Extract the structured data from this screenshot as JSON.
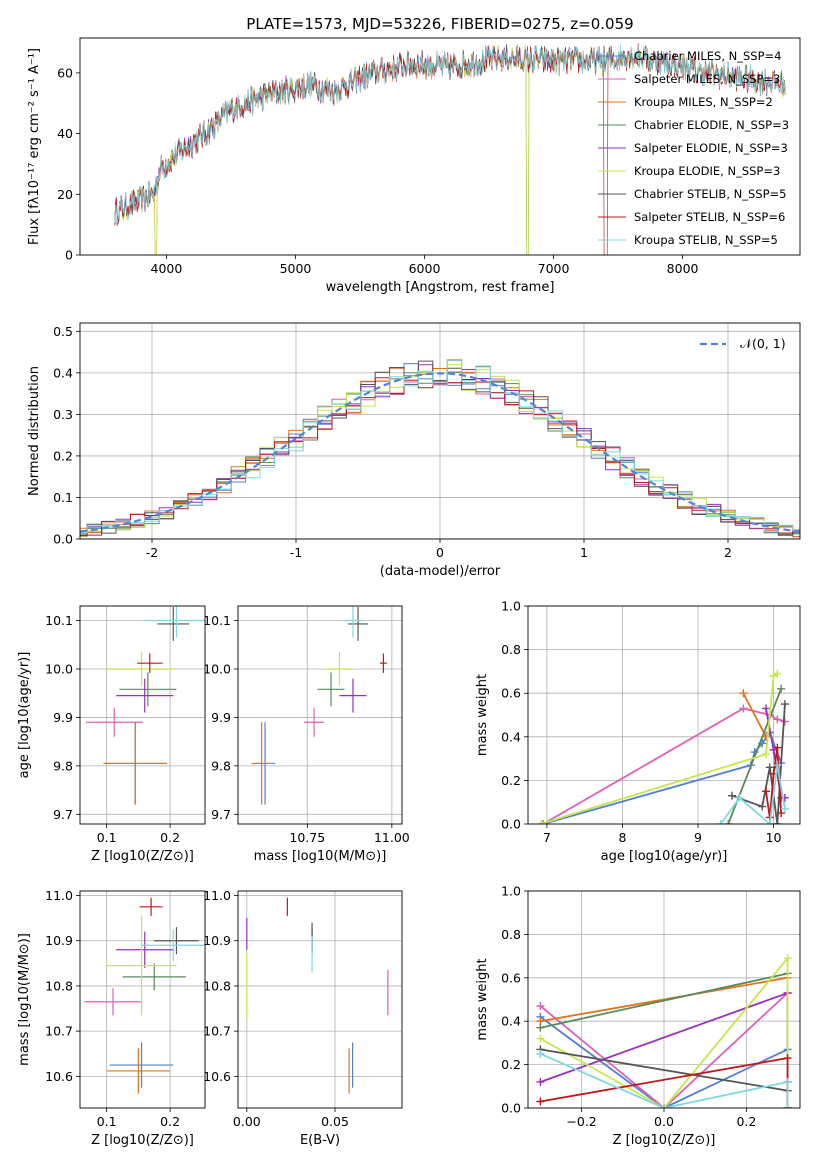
{
  "title": "PLATE=1573, MJD=53226, FIBERID=0275, z=0.059",
  "colors": [
    "#4f7fd9",
    "#e05fb7",
    "#e2731c",
    "#5a8a5a",
    "#9a2fbf",
    "#c4e84a",
    "#555555",
    "#c01818",
    "#7fd8e0"
  ],
  "chart_data": [
    {
      "id": "spectrum",
      "type": "line",
      "xlabel": "wavelength [Angstrom, rest frame]",
      "ylabel": "Flux [fλ10⁻¹⁷ erg cm⁻² s⁻¹ A⁻¹]",
      "xlim": [
        3330,
        8910
      ],
      "ylim": [
        0,
        71.5
      ],
      "xticks": [
        4000,
        5000,
        6000,
        7000,
        8000
      ],
      "yticks": [
        0,
        20,
        40,
        60
      ],
      "grid": false,
      "legend_position": "right",
      "series": [
        {
          "name": "Chabrier MILES, N_SSP=4"
        },
        {
          "name": "Salpeter MILES, N_SSP=3"
        },
        {
          "name": "Kroupa MILES, N_SSP=2"
        },
        {
          "name": "Chabrier ELODIE, N_SSP=3"
        },
        {
          "name": "Salpeter ELODIE, N_SSP=3"
        },
        {
          "name": "Kroupa ELODIE, N_SSP=3"
        },
        {
          "name": "Chabrier STELIB, N_SSP=5"
        },
        {
          "name": "Salpeter STELIB, N_SSP=6"
        },
        {
          "name": "Kroupa STELIB, N_SSP=5"
        }
      ],
      "continuum": {
        "x": [
          3600,
          3900,
          3950,
          4100,
          4300,
          4500,
          4800,
          5100,
          5300,
          5600,
          5900,
          6200,
          6600,
          7000,
          7400,
          7600,
          7800,
          8000,
          8200,
          8500,
          8800
        ],
        "y": [
          14,
          20,
          28,
          34,
          40,
          48,
          53,
          56,
          54,
          60,
          63,
          62,
          65,
          64,
          64,
          66,
          64,
          62,
          60,
          58,
          56
        ]
      }
    },
    {
      "id": "residuals",
      "type": "line",
      "xlabel": "(data-model)/error",
      "ylabel": "Normed distribution",
      "xlim": [
        -2.5,
        2.5
      ],
      "ylim": [
        0,
        0.52
      ],
      "xticks": [
        -2,
        -1,
        0,
        1,
        2
      ],
      "yticks": [
        0.0,
        0.1,
        0.2,
        0.3,
        0.4,
        0.5
      ],
      "grid": true,
      "legend": "𝒩(0, 1)",
      "reference": {
        "name": "𝒩(0, 1)",
        "mean": 0,
        "sigma": 1
      }
    },
    {
      "id": "age-vs-Z",
      "type": "scatter",
      "xlabel": "Z [log10(Z/Z⊙)]",
      "ylabel": "age  [log10(age/yr)]",
      "xlim": [
        0.058,
        0.255
      ],
      "ylim": [
        9.68,
        10.13
      ],
      "xticks": [
        0.1,
        0.2
      ],
      "yticks": [
        9.7,
        9.8,
        9.9,
        10.0,
        10.1
      ],
      "grid": true,
      "points": [
        {
          "x": 0.145,
          "y": 9.805,
          "xerr": 0.05,
          "yerr": 0.085
        },
        {
          "x": 0.112,
          "y": 9.89,
          "xerr": 0.045,
          "yerr": 0.03
        },
        {
          "x": 0.145,
          "y": 9.805,
          "xerr": 0.05,
          "yerr": 0.085
        },
        {
          "x": 0.165,
          "y": 9.958,
          "xerr": 0.045,
          "yerr": 0.035
        },
        {
          "x": 0.16,
          "y": 9.945,
          "xerr": 0.045,
          "yerr": 0.035
        },
        {
          "x": 0.155,
          "y": 10.0,
          "xerr": 0.055,
          "yerr": 0.035
        },
        {
          "x": 0.205,
          "y": 10.093,
          "xerr": 0.025,
          "yerr": 0.035
        },
        {
          "x": 0.168,
          "y": 10.012,
          "xerr": 0.02,
          "yerr": 0.02
        },
        {
          "x": 0.21,
          "y": 10.1,
          "xerr": 0.05,
          "yerr": 0.035
        }
      ]
    },
    {
      "id": "age-vs-mass",
      "type": "scatter",
      "xlabel": "mass [log10(M/M⊙)]",
      "ylabel": "",
      "xlim": [
        10.545,
        11.03
      ],
      "ylim": [
        9.68,
        10.13
      ],
      "xticks": [
        10.75,
        11.0
      ],
      "yticks": [
        9.7,
        9.8,
        9.9,
        10.0,
        10.1
      ],
      "grid": true,
      "points": [
        {
          "x": 10.625,
          "y": 9.805,
          "xerr": 0.03,
          "yerr": 0.085
        },
        {
          "x": 10.77,
          "y": 9.89,
          "xerr": 0.03,
          "yerr": 0.03
        },
        {
          "x": 10.615,
          "y": 9.805,
          "xerr": 0.03,
          "yerr": 0.085
        },
        {
          "x": 10.82,
          "y": 9.958,
          "xerr": 0.04,
          "yerr": 0.035
        },
        {
          "x": 10.885,
          "y": 9.945,
          "xerr": 0.04,
          "yerr": 0.035
        },
        {
          "x": 10.845,
          "y": 10.0,
          "xerr": 0.04,
          "yerr": 0.035
        },
        {
          "x": 10.9,
          "y": 10.093,
          "xerr": 0.03,
          "yerr": 0.035
        },
        {
          "x": 10.975,
          "y": 10.012,
          "xerr": 0.01,
          "yerr": 0.02
        },
        {
          "x": 10.885,
          "y": 10.1,
          "xerr": 0.03,
          "yerr": 0.035
        }
      ]
    },
    {
      "id": "mass-weight-vs-age",
      "type": "line",
      "xlabel": "age  [log10(age/yr)]",
      "ylabel": "mass weight",
      "xlim": [
        6.75,
        10.35
      ],
      "ylim": [
        0,
        1.0
      ],
      "xticks": [
        7,
        8,
        9,
        10
      ],
      "yticks": [
        0.0,
        0.2,
        0.4,
        0.6,
        0.8,
        1.0
      ],
      "grid": true,
      "series": [
        {
          "x": [
            6.95,
            9.7,
            9.75,
            9.85,
            9.95,
            10.1
          ],
          "y": [
            0.0,
            0.27,
            0.33,
            0.37,
            0.42,
            0.28
          ]
        },
        {
          "x": [
            6.95,
            9.6,
            9.95,
            10.05,
            10.15
          ],
          "y": [
            0.0,
            0.53,
            0.5,
            0.48,
            0.47
          ]
        },
        {
          "x": [
            9.6,
            9.9
          ],
          "y": [
            0.6,
            0.4
          ]
        },
        {
          "x": [
            9.4,
            10.1
          ],
          "y": [
            0.0,
            0.62
          ]
        },
        {
          "x": [
            9.9,
            10.0,
            10.1,
            10.15
          ],
          "y": [
            0.53,
            0.34,
            0.12,
            0.12
          ]
        },
        {
          "x": [
            6.92,
            9.9,
            10.0,
            10.05
          ],
          "y": [
            0.0,
            0.32,
            0.68,
            0.69
          ]
        },
        {
          "x": [
            9.45,
            9.85,
            9.95,
            10.05,
            10.15
          ],
          "y": [
            0.13,
            0.08,
            0.26,
            0.0,
            0.55
          ]
        },
        {
          "x": [
            9.9,
            9.95,
            10.0,
            10.05,
            10.1
          ],
          "y": [
            0.15,
            0.03,
            0.23,
            0.35,
            0.05
          ]
        },
        {
          "x": [
            9.3,
            9.55,
            9.95,
            10.05,
            10.15
          ],
          "y": [
            0.0,
            0.12,
            0.0,
            0.27,
            0.07
          ]
        }
      ]
    },
    {
      "id": "mass-vs-Z",
      "type": "scatter",
      "xlabel": "Z [log10(Z/Z⊙)]",
      "ylabel": "mass [log10(M/M⊙)]",
      "xlim": [
        0.058,
        0.255
      ],
      "ylim": [
        10.53,
        11.01
      ],
      "xticks": [
        0.1,
        0.2
      ],
      "yticks": [
        10.6,
        10.7,
        10.8,
        10.9,
        11.0
      ],
      "grid": true,
      "points": [
        {
          "x": 0.155,
          "y": 10.625,
          "xerr": 0.05,
          "yerr": 0.05
        },
        {
          "x": 0.11,
          "y": 10.765,
          "xerr": 0.045,
          "yerr": 0.03
        },
        {
          "x": 0.15,
          "y": 10.612,
          "xerr": 0.05,
          "yerr": 0.05
        },
        {
          "x": 0.175,
          "y": 10.82,
          "xerr": 0.05,
          "yerr": 0.03
        },
        {
          "x": 0.16,
          "y": 10.88,
          "xerr": 0.045,
          "yerr": 0.04
        },
        {
          "x": 0.155,
          "y": 10.845,
          "xerr": 0.055,
          "yerr": 0.11
        },
        {
          "x": 0.21,
          "y": 10.9,
          "xerr": 0.035,
          "yerr": 0.03
        },
        {
          "x": 0.17,
          "y": 10.975,
          "xerr": 0.018,
          "yerr": 0.02
        },
        {
          "x": 0.205,
          "y": 10.89,
          "xerr": 0.05,
          "yerr": 0.035
        }
      ]
    },
    {
      "id": "mass-vs-EBV",
      "type": "scatter",
      "xlabel": "E(B-V)",
      "ylabel": "",
      "xlim": [
        -0.005,
        0.088
      ],
      "ylim": [
        10.53,
        11.01
      ],
      "xticks": [
        0.0,
        0.05
      ],
      "yticks": [
        10.6,
        10.7,
        10.8,
        10.9,
        11.0
      ],
      "grid": true,
      "points": [
        {
          "x": 0.06,
          "y": 10.625,
          "xerr": 0,
          "yerr": 0.05
        },
        {
          "x": 0.08,
          "y": 10.785,
          "xerr": 0,
          "yerr": 0.05
        },
        {
          "x": 0.058,
          "y": 10.612,
          "xerr": 0,
          "yerr": 0.05
        },
        {
          "x": 0.037,
          "y": 10.9,
          "xerr": 0,
          "yerr": 0.025
        },
        {
          "x": 0.0,
          "y": 10.915,
          "xerr": 0,
          "yerr": 0.035
        },
        {
          "x": 0.0,
          "y": 10.8,
          "xerr": 0,
          "yerr": 0.07
        },
        {
          "x": 0.037,
          "y": 10.905,
          "xerr": 0,
          "yerr": 0.035
        },
        {
          "x": 0.023,
          "y": 10.975,
          "xerr": 0,
          "yerr": 0.02
        },
        {
          "x": 0.037,
          "y": 10.87,
          "xerr": 0,
          "yerr": 0.04
        }
      ]
    },
    {
      "id": "mass-weight-vs-Z",
      "type": "line",
      "xlabel": "Z [log10(Z/Z⊙)]",
      "ylabel": "mass weight",
      "xlim": [
        -0.33,
        0.33
      ],
      "ylim": [
        0,
        1.0
      ],
      "xticks": [
        -0.2,
        0.0,
        0.2
      ],
      "yticks": [
        0.0,
        0.2,
        0.4,
        0.6,
        0.8,
        1.0
      ],
      "grid": true,
      "series": [
        {
          "x": [
            -0.3,
            0.0,
            0.3,
            0.3
          ],
          "y": [
            0.42,
            0.0,
            0.27,
            0.0
          ]
        },
        {
          "x": [
            -0.3,
            0.0,
            0.3,
            0.3
          ],
          "y": [
            0.47,
            0.0,
            0.53,
            0.0
          ]
        },
        {
          "x": [
            -0.3,
            0.3
          ],
          "y": [
            0.4,
            0.6
          ]
        },
        {
          "x": [
            -0.3,
            0.3
          ],
          "y": [
            0.37,
            0.62
          ]
        },
        {
          "x": [
            -0.3,
            0.3,
            0.3
          ],
          "y": [
            0.12,
            0.53,
            0.12
          ]
        },
        {
          "x": [
            -0.3,
            0.0,
            0.3,
            0.3
          ],
          "y": [
            0.32,
            0.0,
            0.69,
            0.0
          ]
        },
        {
          "x": [
            -0.3,
            0.3,
            0.3
          ],
          "y": [
            0.27,
            0.08,
            0.0
          ]
        },
        {
          "x": [
            -0.3,
            0.3,
            0.3
          ],
          "y": [
            0.03,
            0.23,
            0.0
          ]
        },
        {
          "x": [
            -0.3,
            0.0,
            0.3,
            0.3
          ],
          "y": [
            0.25,
            0.0,
            0.12,
            0.0
          ]
        }
      ]
    }
  ]
}
